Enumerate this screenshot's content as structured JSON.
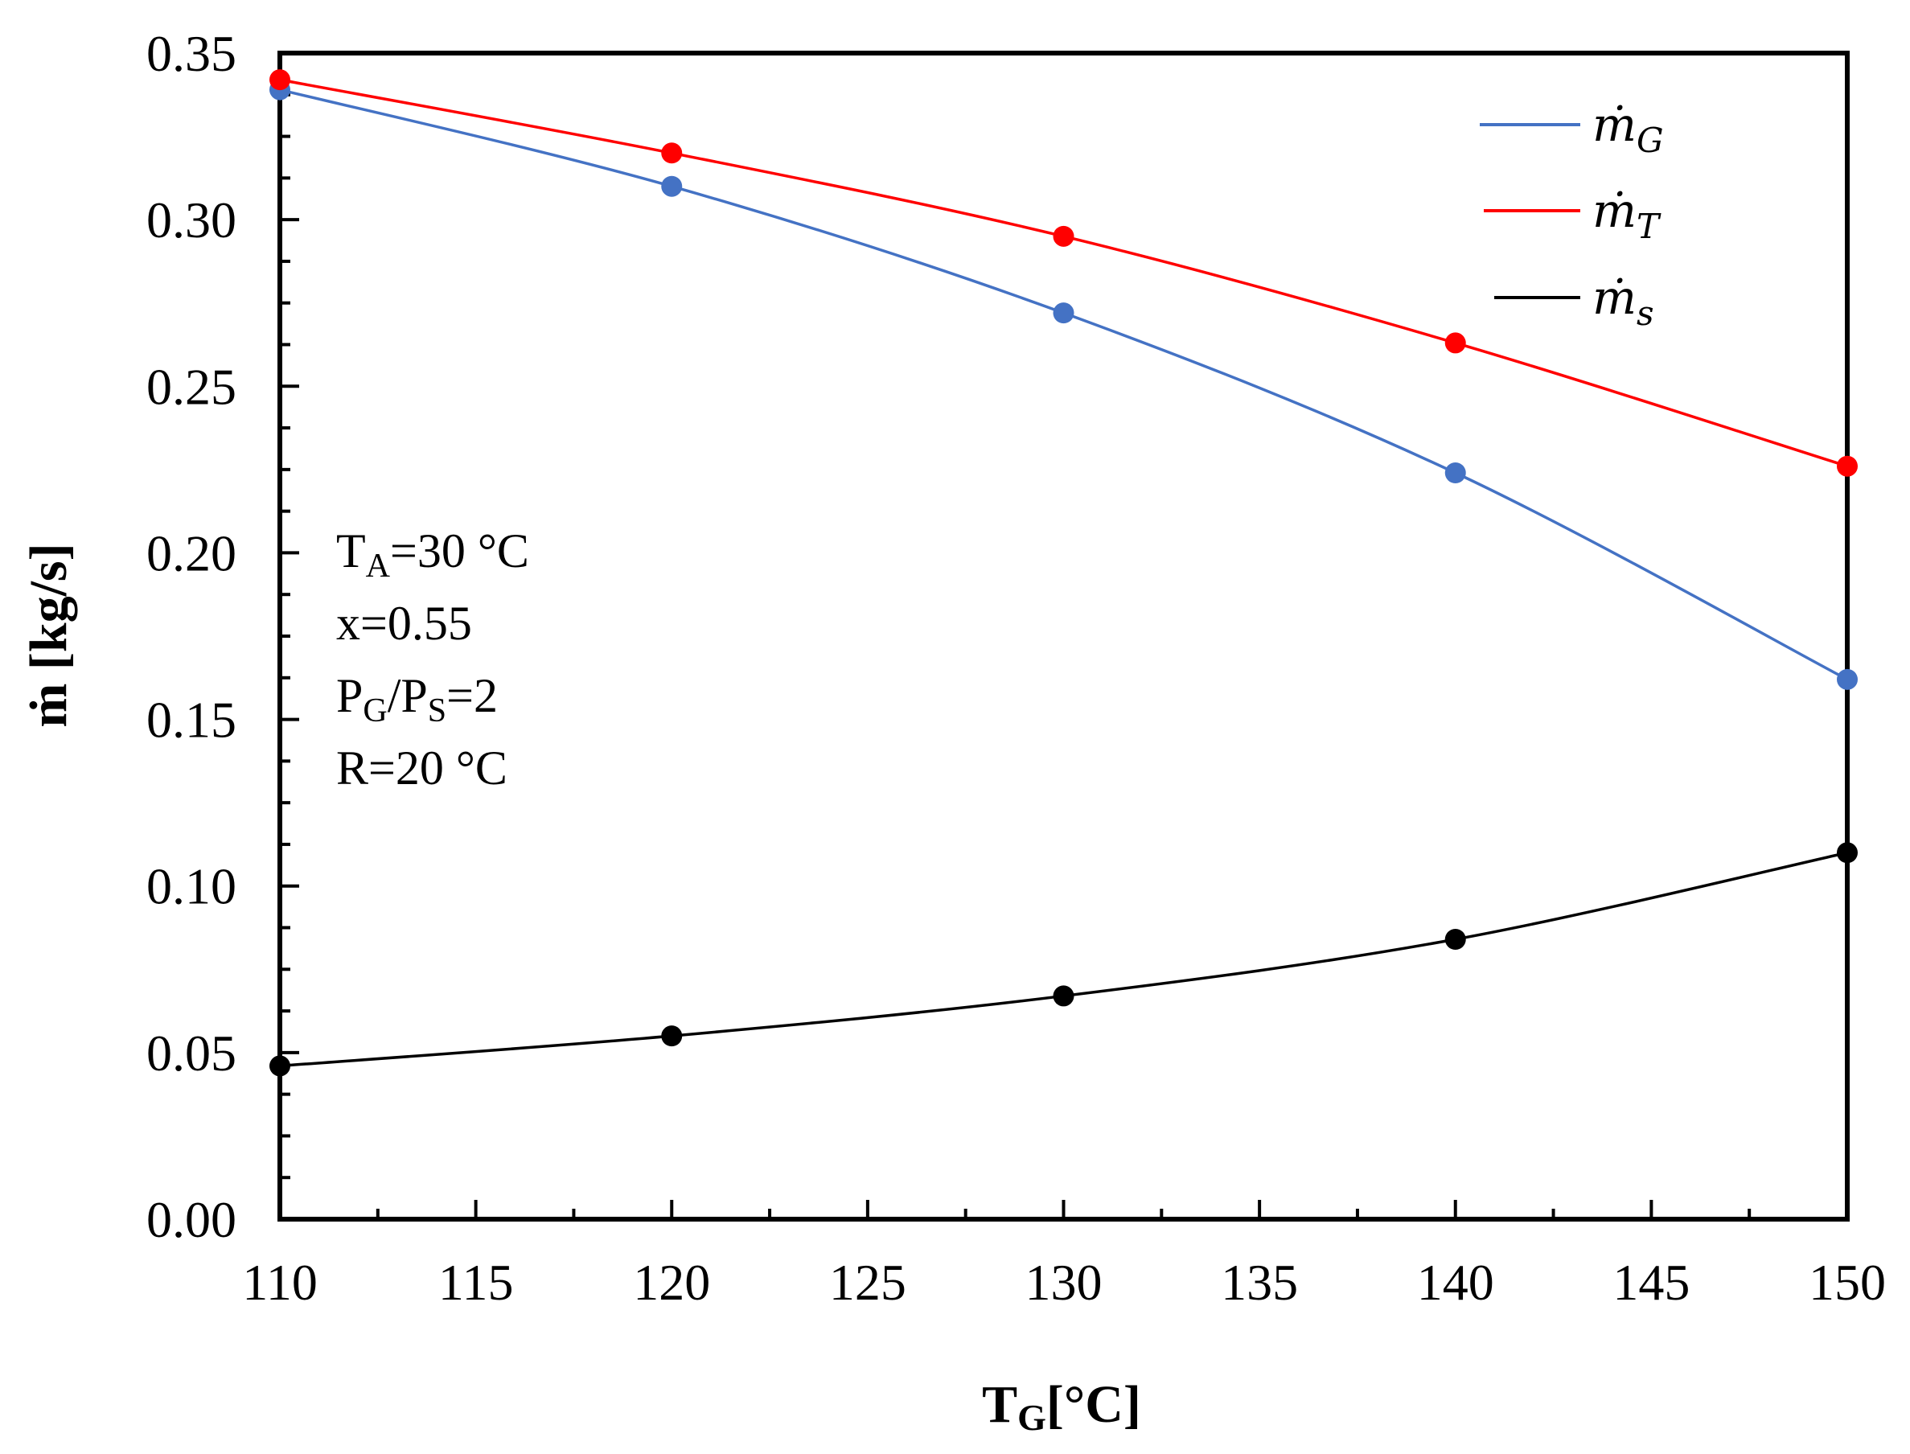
{
  "chart_data": {
    "type": "line",
    "title": "",
    "xlabel": "T",
    "xlabel_sub": "G",
    "xlabel_unit": "[°C]",
    "ylabel": "ṁ [kg/s]",
    "xlim": [
      110,
      150
    ],
    "ylim": [
      0,
      0.35
    ],
    "x_ticks": [
      110,
      115,
      120,
      125,
      130,
      135,
      140,
      145,
      150
    ],
    "x_tick_labels": [
      "110",
      "115",
      "120",
      "125",
      "130",
      "135",
      "140",
      "145",
      "150"
    ],
    "y_ticks": [
      0,
      0.05,
      0.1,
      0.15,
      0.2,
      0.25,
      0.3,
      0.35
    ],
    "y_tick_labels": [
      "0.00",
      "0.05",
      "0.10",
      "0.15",
      "0.20",
      "0.25",
      "0.30",
      "0.35"
    ],
    "x": [
      110,
      120,
      130,
      140,
      150
    ],
    "series": [
      {
        "name": "ṁ",
        "name_sub": "G",
        "color": "#4472C4",
        "values": [
          0.339,
          0.31,
          0.272,
          0.224,
          0.162
        ]
      },
      {
        "name": "ṁ",
        "name_sub": "T",
        "color": "#FF0000",
        "values": [
          0.342,
          0.32,
          0.295,
          0.263,
          0.226
        ]
      },
      {
        "name": "ṁ",
        "name_sub": "s",
        "color": "#000000",
        "values": [
          0.046,
          0.055,
          0.067,
          0.084,
          0.11
        ]
      }
    ],
    "legend_position": "top-right",
    "grid": false,
    "annotations": [
      {
        "main": "T",
        "sub": "A",
        "rest": "=30 °C"
      },
      {
        "main": "x=0.55",
        "sub": "",
        "rest": ""
      },
      {
        "main": "P",
        "sub": "G",
        "rest": "/P",
        "sub2": "S",
        "rest2": "=2"
      },
      {
        "main": "R=20 °C",
        "sub": "",
        "rest": ""
      }
    ]
  }
}
